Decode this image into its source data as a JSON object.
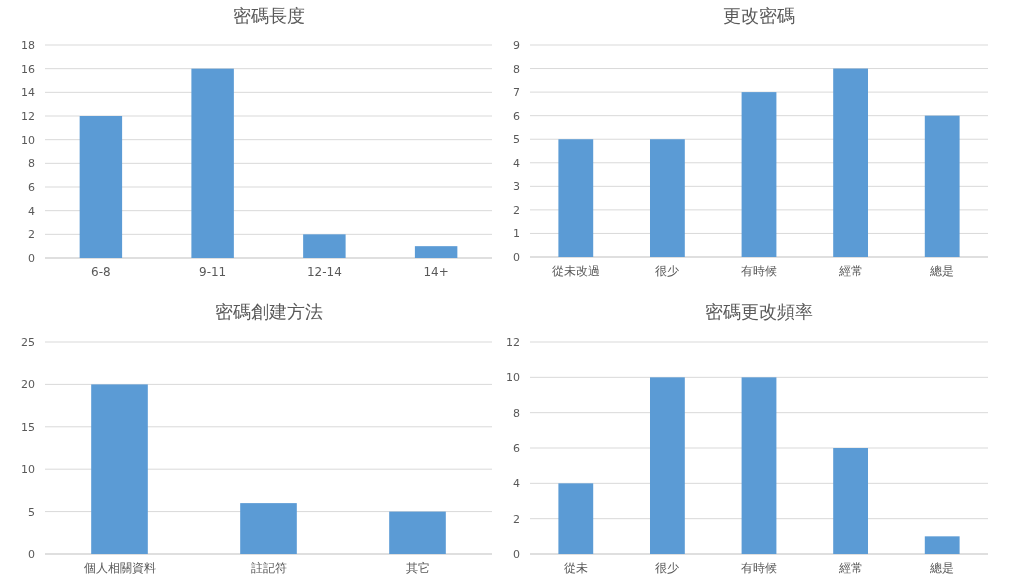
{
  "chart_data": [
    {
      "type": "bar",
      "title": "密碼長度",
      "categories": [
        "6-8",
        "9-11",
        "12-14",
        "14+"
      ],
      "values": [
        12,
        16,
        2,
        1
      ],
      "color": "#5b9bd5",
      "ylim": [
        0,
        18
      ],
      "yticks": [
        0,
        2,
        4,
        6,
        8,
        10,
        12,
        14,
        16,
        18
      ],
      "grid": "y"
    },
    {
      "type": "bar",
      "title": "更改密碼",
      "categories": [
        "從未改過",
        "很少",
        "有時候",
        "經常",
        "總是"
      ],
      "values": [
        5,
        5,
        7,
        8,
        6
      ],
      "color": "#5b9bd5",
      "ylim": [
        0,
        9
      ],
      "yticks": [
        0,
        1,
        2,
        3,
        4,
        5,
        6,
        7,
        8,
        9
      ],
      "grid": "y"
    },
    {
      "type": "bar",
      "title": "密碼創建方法",
      "categories": [
        "個人相關資料",
        "註記符",
        "其它"
      ],
      "values": [
        20,
        6,
        5
      ],
      "color": "#5b9bd5",
      "ylim": [
        0,
        25
      ],
      "yticks": [
        0,
        5,
        10,
        15,
        20,
        25
      ],
      "grid": "y"
    },
    {
      "type": "bar",
      "title": "密碼更改頻率",
      "categories": [
        "從未",
        "很少",
        "有時候",
        "經常",
        "總是"
      ],
      "values": [
        4,
        10,
        10,
        6,
        1
      ],
      "color": "#5b9bd5",
      "ylim": [
        0,
        12
      ],
      "yticks": [
        0,
        2,
        4,
        6,
        8,
        10,
        12
      ],
      "grid": "y"
    }
  ]
}
